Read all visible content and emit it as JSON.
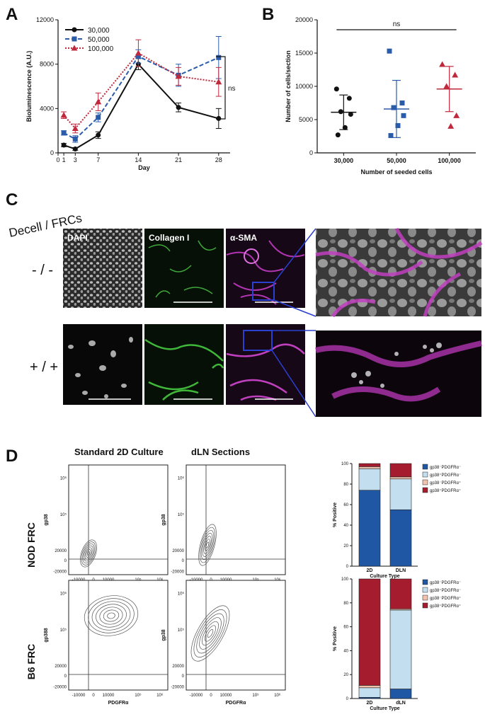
{
  "panel_a": {
    "label": "A",
    "chart_data": {
      "type": "line",
      "x": [
        0,
        1,
        3,
        7,
        14,
        21,
        28
      ],
      "xticks": [
        "0",
        "1",
        "3",
        "7",
        "14",
        "21",
        "28"
      ],
      "yticks": [
        "0",
        "4000",
        "8000",
        "12000"
      ],
      "xlabel": "Day",
      "ylabel": "Bioluminescence (A.U.)",
      "ylim": [
        0,
        12000
      ],
      "xlim": [
        0,
        30
      ],
      "legend": "top-left",
      "annotation": "ns",
      "series": [
        {
          "name": "30,000",
          "color": "#111111",
          "marker": "circle",
          "style": "solid",
          "x": [
            1,
            3,
            7,
            14,
            21,
            28
          ],
          "values": [
            700,
            350,
            1600,
            8000,
            4100,
            3100
          ],
          "err": [
            150,
            120,
            300,
            500,
            400,
            900
          ]
        },
        {
          "name": "50,000",
          "color": "#2a5caa",
          "marker": "square",
          "style": "dashed",
          "x": [
            1,
            3,
            7,
            14,
            21,
            28
          ],
          "values": [
            1800,
            1250,
            3200,
            8700,
            7000,
            8600
          ],
          "err": [
            200,
            300,
            400,
            600,
            1000,
            1900
          ]
        },
        {
          "name": "100,000",
          "color": "#c0283c",
          "marker": "triangle",
          "style": "dotted",
          "x": [
            1,
            3,
            7,
            14,
            21,
            28
          ],
          "values": [
            3400,
            2200,
            4600,
            9000,
            6900,
            6400
          ],
          "err": [
            300,
            400,
            800,
            1200,
            800,
            1300
          ]
        }
      ]
    }
  },
  "panel_b": {
    "label": "B",
    "chart_data": {
      "type": "scatter",
      "categories": [
        "30,000",
        "50,000",
        "100,000"
      ],
      "yticks": [
        "0",
        "5000",
        "10000",
        "15000",
        "20000"
      ],
      "xlabel": "Number of seeded cells",
      "ylabel": "Number of cells/section",
      "ylim": [
        0,
        20000
      ],
      "annotation": "ns",
      "series": [
        {
          "name": "30,000",
          "color": "#111111",
          "marker": "circle",
          "points": [
            9600,
            8200,
            6200,
            5800,
            3800,
            2700
          ],
          "mean": 6100,
          "sd": 2600
        },
        {
          "name": "50,000",
          "color": "#2a5caa",
          "marker": "square",
          "points": [
            15300,
            7500,
            6800,
            5600,
            4100,
            2600
          ],
          "mean": 6600,
          "sd": 4300
        },
        {
          "name": "100,000",
          "color": "#c0283c",
          "marker": "triangle",
          "points": [
            13300,
            11700,
            10000,
            5600,
            4000
          ],
          "mean": 9600,
          "sd": 3400
        }
      ]
    }
  },
  "panel_c": {
    "label": "C",
    "header": "Decell / FRCs",
    "channels": [
      "DAPI",
      "Collagen I",
      "α-SMA"
    ],
    "rows": [
      "- / -",
      "+ / +"
    ]
  },
  "panel_d": {
    "label": "D",
    "col_headers": [
      "Standard 2D Culture",
      "dLN Sections"
    ],
    "rows": [
      "NOD FRC",
      "B6 FRC"
    ],
    "flow": {
      "x_label": "PDGFRα",
      "y_label_nod": "gp38",
      "y_label_b6_2d": "gp388",
      "y_label_b6_ln": "gp38",
      "xticks": [
        "-10000",
        "0",
        "10000",
        "10⁵",
        "10⁶"
      ],
      "yticks": [
        "-20000",
        "0",
        "20000",
        "10⁵",
        "10⁶"
      ]
    },
    "bar_charts": [
      {
        "type": "bar",
        "stacked": true,
        "categories": [
          "2D",
          "DLN"
        ],
        "yticks": [
          "0",
          "20",
          "40",
          "60",
          "80",
          "100"
        ],
        "ylabel": "% Positive",
        "xlabel": "Culture Type",
        "ylim": [
          0,
          100
        ],
        "series": [
          {
            "name": "gp38⁻PDGFRα⁻",
            "color": "#1f57a4",
            "values": [
              74,
              55
            ]
          },
          {
            "name": "gp38⁺PDGFRα⁻",
            "color": "#c3deee",
            "values": [
              21,
              30
            ]
          },
          {
            "name": "gp38⁻PDGFRα⁺",
            "color": "#f2c2ad",
            "values": [
              2,
              2
            ]
          },
          {
            "name": "gp38⁺PDGFRα⁺",
            "color": "#a51c2e",
            "values": [
              3,
              13
            ]
          }
        ]
      },
      {
        "type": "bar",
        "stacked": true,
        "categories": [
          "2D",
          "dLN"
        ],
        "yticks": [
          "0",
          "20",
          "40",
          "60",
          "80",
          "100"
        ],
        "ylabel": "% Positive",
        "xlabel": "Culture Type",
        "ylim": [
          0,
          100
        ],
        "series": [
          {
            "name": "gp38⁻PDGFRα⁻",
            "color": "#1f57a4",
            "values": [
              1,
              8
            ]
          },
          {
            "name": "gp38⁺PDGFRα⁻",
            "color": "#c3deee",
            "values": [
              8,
              66
            ]
          },
          {
            "name": "gp38⁻PDGFRα⁺",
            "color": "#f2c2ad",
            "values": [
              2,
              1
            ]
          },
          {
            "name": "gp38⁺PDGFRα⁺",
            "color": "#a51c2e",
            "values": [
              89,
              25
            ]
          }
        ]
      }
    ]
  }
}
